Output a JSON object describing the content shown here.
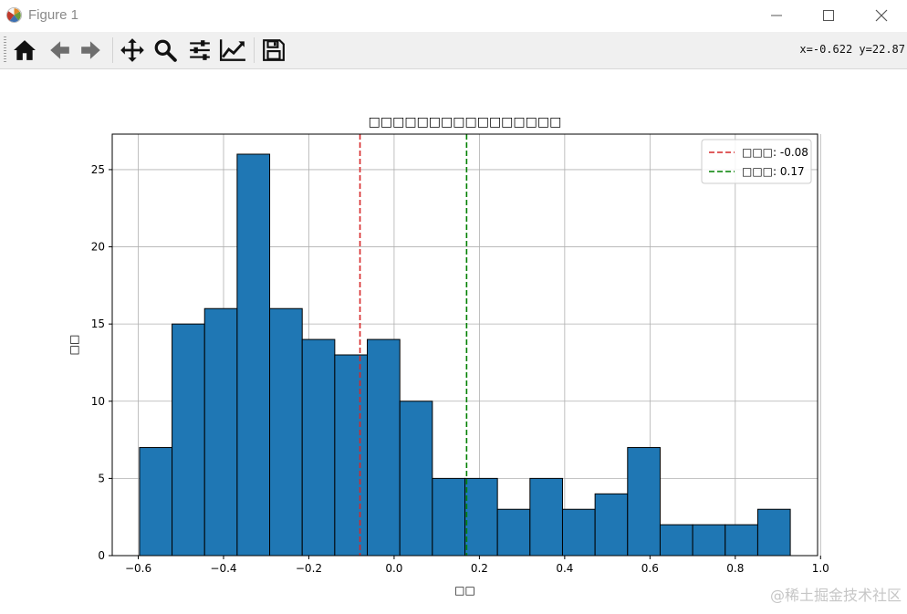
{
  "window": {
    "title": "Figure 1",
    "controls": [
      "minimize",
      "maximize",
      "close"
    ]
  },
  "toolbar": {
    "tools": [
      "home-icon",
      "back-arrow-icon",
      "forward-arrow-icon",
      "pan-icon",
      "zoom-icon",
      "subplots-icon",
      "axes-edit-icon",
      "save-icon"
    ],
    "coords_readout": "x=-0.622 y=22.87"
  },
  "chart_data": {
    "type": "bar",
    "title": "□□□□□□□□□□□□□□□□",
    "xlabel": "□□",
    "ylabel": "□□",
    "bin_edges": [
      -0.597,
      -0.5207,
      -0.4444,
      -0.3681,
      -0.2918,
      -0.2155,
      -0.1392,
      -0.0629,
      0.0134,
      0.0897,
      0.166,
      0.2423,
      0.3186,
      0.3949,
      0.4712,
      0.5475,
      0.6238,
      0.7001,
      0.7764,
      0.8527,
      0.929
    ],
    "values": [
      7,
      15,
      16,
      26,
      16,
      14,
      13,
      14,
      10,
      5,
      5,
      3,
      5,
      3,
      4,
      7,
      2,
      2,
      2,
      3
    ],
    "xlim": [
      -0.661,
      0.993
    ],
    "ylim": [
      0,
      27.3
    ],
    "xticks": [
      -0.6,
      -0.4,
      -0.2,
      0.0,
      0.2,
      0.4,
      0.6,
      0.8,
      1.0
    ],
    "xtick_labels": [
      "−0.6",
      "−0.4",
      "−0.2",
      "0.0",
      "0.2",
      "0.4",
      "0.6",
      "0.8",
      "1.0"
    ],
    "yticks": [
      0,
      5,
      10,
      15,
      20,
      25
    ],
    "ytick_labels": [
      "0",
      "5",
      "10",
      "15",
      "20",
      "25"
    ],
    "grid": true,
    "bar_color": "#1f77b4",
    "bar_edge_color": "#000000",
    "lines": [
      {
        "x": -0.08,
        "color": "#d62728",
        "style": "dashed",
        "label": "□□□: -0.08"
      },
      {
        "x": 0.17,
        "color": "#008000",
        "style": "dashed",
        "label": "□□□: 0.17"
      }
    ],
    "legend_position": "top-right"
  },
  "watermark": "@稀土掘金技术社区"
}
